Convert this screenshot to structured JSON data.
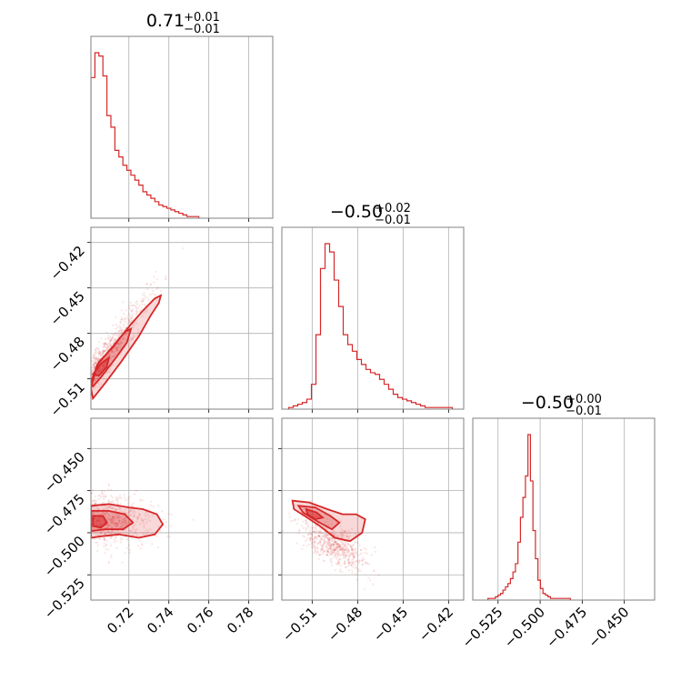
{
  "chart_data": {
    "type": "corner",
    "line_color": "#d62728",
    "parameters": [
      {
        "id": "p0",
        "median": "0.71",
        "plus": "+0.01",
        "minus": "−0.01",
        "range": [
          0.701,
          0.792
        ],
        "ticks": [
          0.72,
          0.74,
          0.76,
          0.78
        ],
        "tick_labels": [
          "0.72",
          "0.74",
          "0.76",
          "0.78"
        ]
      },
      {
        "id": "p1",
        "median": "−0.50",
        "plus": "+0.02",
        "minus": "−0.01",
        "range": [
          -0.53,
          -0.41
        ],
        "ticks": [
          -0.51,
          -0.48,
          -0.45,
          -0.42
        ],
        "tick_labels": [
          "−0.51",
          "−0.48",
          "−0.45",
          "−0.42"
        ]
      },
      {
        "id": "p2",
        "median": "−0.50",
        "plus": "+0.00",
        "minus": "−0.01",
        "range": [
          -0.54,
          -0.432
        ],
        "ticks": [
          -0.525,
          -0.5,
          -0.475,
          -0.45
        ],
        "tick_labels": [
          "−0.525",
          "−0.500",
          "−0.475",
          "−0.450"
        ]
      }
    ],
    "histograms": [
      {
        "param": 0,
        "x_start": 0.701,
        "x_end": 0.755,
        "counts": [
          85,
          100,
          98,
          86,
          62,
          55,
          41,
          37,
          32,
          29,
          26,
          23,
          20,
          16,
          14,
          12,
          10,
          8,
          7,
          6,
          5,
          4,
          3,
          2,
          1,
          1,
          1
        ]
      },
      {
        "param": 1,
        "x_start": -0.5255,
        "x_end": -0.4175,
        "counts": [
          1,
          2,
          3,
          4,
          6,
          15,
          45,
          85,
          100,
          95,
          78,
          62,
          45,
          39,
          35,
          30,
          27,
          24,
          22,
          21,
          18,
          15,
          12,
          9,
          7,
          6,
          5,
          4,
          3,
          2,
          1,
          1,
          1,
          1,
          1,
          1
        ]
      },
      {
        "param": 2,
        "x_start": -0.531,
        "x_end": -0.482,
        "counts": [
          1,
          1,
          1,
          2,
          3,
          4,
          6,
          8,
          10,
          13,
          17,
          22,
          35,
          50,
          62,
          75,
          100,
          72,
          42,
          25,
          12,
          7,
          4,
          3,
          2,
          1,
          1,
          1,
          1,
          1,
          1,
          1,
          1
        ]
      }
    ],
    "pairs": [
      {
        "x_param": 0,
        "y_param": 1,
        "model": "linear",
        "slope": 1.85,
        "intercept": -1.806,
        "x_center": 0.705,
        "x_spread": 0.009,
        "y_noise": 0.006,
        "contours": [
          {
            "level": "outer",
            "points": [
              [
                0.701,
                -0.516
              ],
              [
                0.704,
                -0.501
              ],
              [
                0.713,
                -0.487
              ],
              [
                0.721,
                -0.474
              ],
              [
                0.727,
                -0.465
              ],
              [
                0.733,
                -0.457
              ],
              [
                0.736,
                -0.455
              ],
              [
                0.735,
                -0.46
              ],
              [
                0.731,
                -0.468
              ],
              [
                0.725,
                -0.482
              ],
              [
                0.716,
                -0.499
              ],
              [
                0.708,
                -0.513
              ],
              [
                0.702,
                -0.523
              ]
            ]
          },
          {
            "level": "middle",
            "points": [
              [
                0.701,
                -0.512
              ],
              [
                0.705,
                -0.499
              ],
              [
                0.712,
                -0.489
              ],
              [
                0.718,
                -0.479
              ],
              [
                0.721,
                -0.477
              ],
              [
                0.719,
                -0.486
              ],
              [
                0.713,
                -0.497
              ],
              [
                0.706,
                -0.509
              ],
              [
                0.702,
                -0.515
              ]
            ]
          },
          {
            "level": "inner",
            "points": [
              [
                0.702,
                -0.507
              ],
              [
                0.706,
                -0.5
              ],
              [
                0.71,
                -0.496
              ],
              [
                0.709,
                -0.502
              ],
              [
                0.705,
                -0.508
              ]
            ]
          }
        ]
      },
      {
        "x_param": 0,
        "y_param": 2,
        "model": "flat",
        "y_center": -0.493,
        "x_center": 0.708,
        "x_spread": 0.011,
        "y_noise": 0.008,
        "contours": [
          {
            "level": "outer",
            "points": [
              [
                0.701,
                -0.484
              ],
              [
                0.71,
                -0.483
              ],
              [
                0.72,
                -0.485
              ],
              [
                0.727,
                -0.486
              ],
              [
                0.734,
                -0.489
              ],
              [
                0.737,
                -0.495
              ],
              [
                0.733,
                -0.501
              ],
              [
                0.725,
                -0.503
              ],
              [
                0.715,
                -0.501
              ],
              [
                0.707,
                -0.502
              ],
              [
                0.701,
                -0.503
              ]
            ]
          },
          {
            "level": "middle",
            "points": [
              [
                0.701,
                -0.487
              ],
              [
                0.71,
                -0.487
              ],
              [
                0.718,
                -0.489
              ],
              [
                0.722,
                -0.494
              ],
              [
                0.717,
                -0.498
              ],
              [
                0.708,
                -0.498
              ],
              [
                0.701,
                -0.499
              ]
            ]
          },
          {
            "level": "inner",
            "points": [
              [
                0.702,
                -0.49
              ],
              [
                0.707,
                -0.49
              ],
              [
                0.709,
                -0.494
              ],
              [
                0.706,
                -0.497
              ],
              [
                0.702,
                -0.496
              ]
            ]
          }
        ]
      },
      {
        "x_param": 1,
        "y_param": 2,
        "model": "linear",
        "slope": -0.45,
        "intercept": -0.73,
        "x_center": -0.496,
        "x_spread": 0.011,
        "y_noise": 0.006,
        "contours": [
          {
            "level": "outer",
            "points": [
              [
                -0.523,
                -0.481
              ],
              [
                -0.512,
                -0.482
              ],
              [
                -0.5,
                -0.486
              ],
              [
                -0.49,
                -0.489
              ],
              [
                -0.481,
                -0.489
              ],
              [
                -0.475,
                -0.492
              ],
              [
                -0.477,
                -0.5
              ],
              [
                -0.485,
                -0.505
              ],
              [
                -0.495,
                -0.503
              ],
              [
                -0.505,
                -0.496
              ],
              [
                -0.515,
                -0.49
              ],
              [
                -0.522,
                -0.486
              ]
            ]
          },
          {
            "level": "middle",
            "points": [
              [
                -0.519,
                -0.484
              ],
              [
                -0.508,
                -0.485
              ],
              [
                -0.498,
                -0.49
              ],
              [
                -0.492,
                -0.494
              ],
              [
                -0.497,
                -0.498
              ],
              [
                -0.507,
                -0.493
              ],
              [
                -0.516,
                -0.488
              ]
            ]
          },
          {
            "level": "inner",
            "points": [
              [
                -0.514,
                -0.486
              ],
              [
                -0.507,
                -0.488
              ],
              [
                -0.503,
                -0.491
              ],
              [
                -0.508,
                -0.492
              ],
              [
                -0.513,
                -0.489
              ]
            ]
          }
        ]
      }
    ]
  }
}
